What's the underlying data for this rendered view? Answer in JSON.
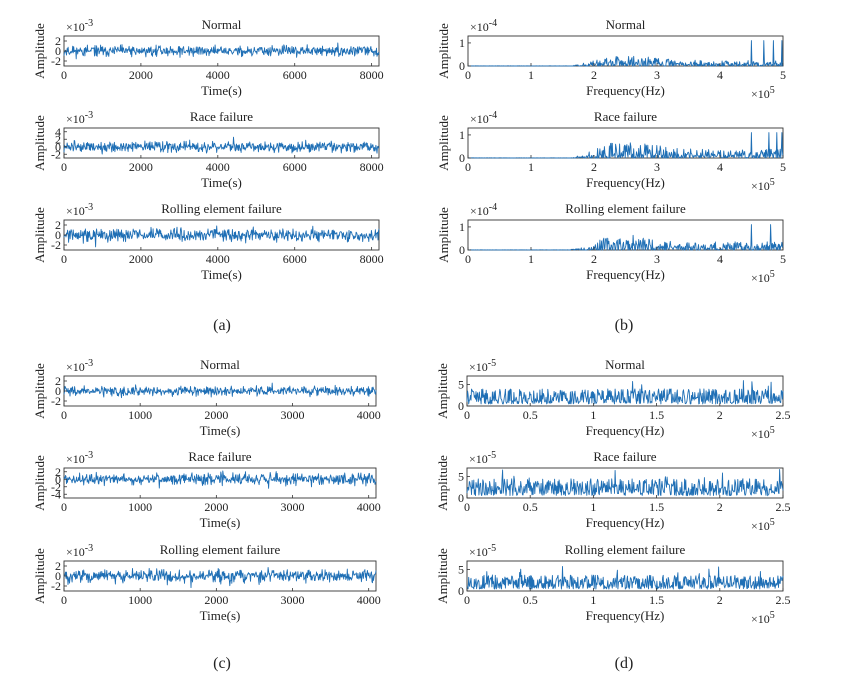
{
  "chart_data": [
    {
      "panel": "(a)",
      "type": "line",
      "title": "Normal",
      "xlabel": "Time(s)",
      "ylabel": "Amplitude",
      "xlim": [
        0,
        8192
      ],
      "xticks": [
        0,
        2000,
        4000,
        6000,
        8000
      ],
      "yticks": [
        -2,
        0,
        2
      ],
      "ylim": [
        -3,
        3
      ],
      "yexp": "×10",
      "yexp_power": "-3",
      "xexp": "",
      "xexp_power": "",
      "series": [
        {
          "name": "Normal",
          "signal": "noise",
          "amplitude": 1.8,
          "seed": 11,
          "mean": 0
        }
      ]
    },
    {
      "panel": "(a)",
      "type": "line",
      "title": "Race failure",
      "xlabel": "Time(s)",
      "ylabel": "Amplitude",
      "xlim": [
        0,
        8192
      ],
      "xticks": [
        0,
        2000,
        4000,
        6000,
        8000
      ],
      "yticks": [
        -2,
        0,
        2,
        4
      ],
      "ylim": [
        -3,
        5
      ],
      "yexp": "×10",
      "yexp_power": "-3",
      "xexp": "",
      "xexp_power": "",
      "series": [
        {
          "name": "Race failure",
          "signal": "noise",
          "amplitude": 2.4,
          "seed": 12,
          "mean": 0
        }
      ]
    },
    {
      "panel": "(a)",
      "type": "line",
      "title": "Rolling element failure",
      "xlabel": "Time(s)",
      "ylabel": "Amplitude",
      "xlim": [
        0,
        8192
      ],
      "xticks": [
        0,
        2000,
        4000,
        6000,
        8000
      ],
      "yticks": [
        -2,
        0,
        2
      ],
      "ylim": [
        -3,
        3
      ],
      "yexp": "×10",
      "yexp_power": "-3",
      "xexp": "",
      "xexp_power": "",
      "series": [
        {
          "name": "Rolling element failure",
          "signal": "noise",
          "amplitude": 2.2,
          "seed": 13,
          "mean": 0
        }
      ]
    },
    {
      "panel": "(b)",
      "type": "line",
      "title": "Normal",
      "xlabel": "Frequency(Hz)",
      "ylabel": "Amplitude",
      "xlim": [
        0,
        5
      ],
      "xticks": [
        0,
        1,
        2,
        3,
        4,
        5
      ],
      "yticks": [
        0,
        1
      ],
      "ylim": [
        0,
        1.3
      ],
      "yexp": "×10",
      "yexp_power": "-4",
      "xexp": "×10",
      "xexp_power": "5",
      "series": [
        {
          "name": "Normal",
          "signal": "spectrum",
          "amplitude": 0.45,
          "seed": 21,
          "onset": 1.6,
          "spikes": [
            4.5,
            4.7,
            4.85,
            4.98
          ]
        }
      ]
    },
    {
      "panel": "(b)",
      "type": "line",
      "title": "Race failure",
      "xlabel": "Frequency(Hz)",
      "ylabel": "Amplitude",
      "xlim": [
        0,
        5
      ],
      "xticks": [
        0,
        1,
        2,
        3,
        4,
        5
      ],
      "yticks": [
        0,
        1
      ],
      "ylim": [
        0,
        1.3
      ],
      "yexp": "×10",
      "yexp_power": "-4",
      "xexp": "×10",
      "xexp_power": "5",
      "series": [
        {
          "name": "Race failure",
          "signal": "spectrum",
          "amplitude": 0.7,
          "seed": 22,
          "onset": 1.6,
          "spikes": [
            4.5,
            4.78,
            4.9,
            4.98
          ]
        }
      ]
    },
    {
      "panel": "(b)",
      "type": "line",
      "title": "Rolling element failure",
      "xlabel": "Frequency(Hz)",
      "ylabel": "Amplitude",
      "xlim": [
        0,
        5
      ],
      "xticks": [
        0,
        1,
        2,
        3,
        4,
        5
      ],
      "yticks": [
        0,
        1
      ],
      "ylim": [
        0,
        1.3
      ],
      "yexp": "×10",
      "yexp_power": "-4",
      "xexp": "×10",
      "xexp_power": "5",
      "series": [
        {
          "name": "Rolling element failure",
          "signal": "spectrum",
          "amplitude": 0.65,
          "seed": 23,
          "onset": 1.6,
          "spikes": [
            4.5,
            4.8
          ]
        }
      ]
    },
    {
      "panel": "(c)",
      "type": "line",
      "title": "Normal",
      "xlabel": "Time(s)",
      "ylabel": "Amplitude",
      "xlim": [
        0,
        4096
      ],
      "xticks": [
        0,
        1000,
        2000,
        3000,
        4000
      ],
      "yticks": [
        -2,
        0,
        2
      ],
      "ylim": [
        -3,
        3
      ],
      "yexp": "×10",
      "yexp_power": "-3",
      "xexp": "",
      "xexp_power": "",
      "series": [
        {
          "name": "Normal",
          "signal": "noise",
          "amplitude": 1.7,
          "seed": 31,
          "mean": 0
        }
      ]
    },
    {
      "panel": "(c)",
      "type": "line",
      "title": "Race failure",
      "xlabel": "Time(s)",
      "ylabel": "Amplitude",
      "xlim": [
        0,
        4096
      ],
      "xticks": [
        0,
        1000,
        2000,
        3000,
        4000
      ],
      "yticks": [
        -4,
        -2,
        0,
        2
      ],
      "ylim": [
        -5,
        3
      ],
      "yexp": "×10",
      "yexp_power": "-3",
      "xexp": "",
      "xexp_power": "",
      "series": [
        {
          "name": "Race failure",
          "signal": "noise",
          "amplitude": 2.6,
          "seed": 32,
          "mean": 0
        }
      ]
    },
    {
      "panel": "(c)",
      "type": "line",
      "title": "Rolling element failure",
      "xlabel": "Time(s)",
      "ylabel": "Amplitude",
      "xlim": [
        0,
        4096
      ],
      "xticks": [
        0,
        1000,
        2000,
        3000,
        4000
      ],
      "yticks": [
        -2,
        0,
        2
      ],
      "ylim": [
        -3,
        3
      ],
      "yexp": "×10",
      "yexp_power": "-3",
      "xexp": "",
      "xexp_power": "",
      "series": [
        {
          "name": "Rolling element failure",
          "signal": "noise",
          "amplitude": 2.2,
          "seed": 33,
          "mean": 0
        }
      ]
    },
    {
      "panel": "(d)",
      "type": "line",
      "title": "Normal",
      "xlabel": "Frequency(Hz)",
      "ylabel": "Amplitude",
      "xlim": [
        0,
        2.5
      ],
      "xticks": [
        0,
        0.5,
        1,
        1.5,
        2,
        2.5
      ],
      "yticks": [
        0,
        5
      ],
      "ylim": [
        0,
        7
      ],
      "yexp": "×10",
      "yexp_power": "-5",
      "xexp": "×10",
      "xexp_power": "5",
      "series": [
        {
          "name": "Normal",
          "signal": "flatspectrum",
          "amplitude": 3.2,
          "seed": 41
        }
      ]
    },
    {
      "panel": "(d)",
      "type": "line",
      "title": "Race failure",
      "xlabel": "Frequency(Hz)",
      "ylabel": "Amplitude",
      "xlim": [
        0,
        2.5
      ],
      "xticks": [
        0,
        0.5,
        1,
        1.5,
        2,
        2.5
      ],
      "yticks": [
        0,
        5
      ],
      "ylim": [
        0,
        7
      ],
      "yexp": "×10",
      "yexp_power": "-5",
      "xexp": "×10",
      "xexp_power": "5",
      "series": [
        {
          "name": "Race failure",
          "signal": "flatspectrum",
          "amplitude": 3.6,
          "seed": 42
        }
      ]
    },
    {
      "panel": "(d)",
      "type": "line",
      "title": "Rolling element failure",
      "xlabel": "Frequency(Hz)",
      "ylabel": "Amplitude",
      "xlim": [
        0,
        2.5
      ],
      "xticks": [
        0,
        0.5,
        1,
        1.5,
        2,
        2.5
      ],
      "yticks": [
        0,
        5
      ],
      "ylim": [
        0,
        7
      ],
      "yexp": "×10",
      "yexp_power": "-5",
      "xexp": "×10",
      "xexp_power": "5",
      "series": [
        {
          "name": "Rolling element failure",
          "signal": "flatspectrum",
          "amplitude": 3.0,
          "seed": 43
        }
      ]
    }
  ],
  "panel_labels": [
    "(a)",
    "(b)",
    "(c)",
    "(d)"
  ],
  "colors": {
    "trace": "#1f6fb5",
    "axis": "#333333",
    "text": "#222222"
  }
}
